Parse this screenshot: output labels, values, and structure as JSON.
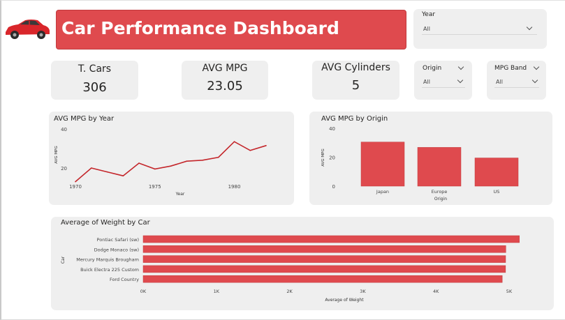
{
  "header": {
    "title": "Car Performance Dashboard",
    "logo_icon": "red-car-icon"
  },
  "kpis": {
    "total_cars": {
      "label": "T. Cars",
      "value": "306"
    },
    "avg_mpg": {
      "label": "AVG MPG",
      "value": "23.05"
    },
    "avg_cylinders": {
      "label": "AVG Cylinders",
      "value": "5"
    }
  },
  "slicers": {
    "year": {
      "label": "Year",
      "value": "All"
    },
    "origin": {
      "label": "Origin",
      "value": "All"
    },
    "mpg_band": {
      "label": "MPG Band",
      "value": "All"
    }
  },
  "colors": {
    "accent": "#df4a4e",
    "line": "#c4262b",
    "card": "#efefef"
  },
  "chart_data": [
    {
      "type": "line",
      "title": "AVG MPG by Year",
      "xlabel": "Year",
      "ylabel": "AVG MPG",
      "x": [
        1970,
        1971,
        1972,
        1973,
        1974,
        1975,
        1976,
        1977,
        1978,
        1979,
        1980,
        1981,
        1982
      ],
      "values": [
        13,
        20,
        18,
        16,
        22.5,
        19.5,
        21,
        23.5,
        24,
        25.5,
        33.5,
        29,
        31.5
      ],
      "x_ticks": [
        "1970",
        "1975",
        "1980"
      ],
      "y_ticks": [
        "20",
        "40"
      ],
      "ylim": [
        10,
        40
      ],
      "grid": false
    },
    {
      "type": "bar",
      "title": "AVG MPG by Origin",
      "xlabel": "Origin",
      "ylabel": "AVG MPG",
      "categories": [
        "Japan",
        "Europe",
        "US"
      ],
      "values": [
        30.5,
        26.8,
        19.5
      ],
      "y_ticks": [
        "0",
        "20",
        "40"
      ],
      "ylim": [
        0,
        40
      ],
      "grid": false
    },
    {
      "type": "bar",
      "orientation": "horizontal",
      "title": "Average of Weight by Car",
      "xlabel": "Average of Weight",
      "ylabel": "Car",
      "categories": [
        "Pontiac Safari (sw)",
        "Dodge Monaco (sw)",
        "Mercury Marquis Brougham",
        "Buick Electra 225 Custom",
        "Ford Country"
      ],
      "values": [
        5140,
        4955,
        4952,
        4951,
        4906
      ],
      "x_ticks": [
        "0K",
        "1K",
        "2K",
        "3K",
        "4K",
        "5K"
      ],
      "xlim": [
        0,
        5000
      ],
      "grid": false
    }
  ]
}
